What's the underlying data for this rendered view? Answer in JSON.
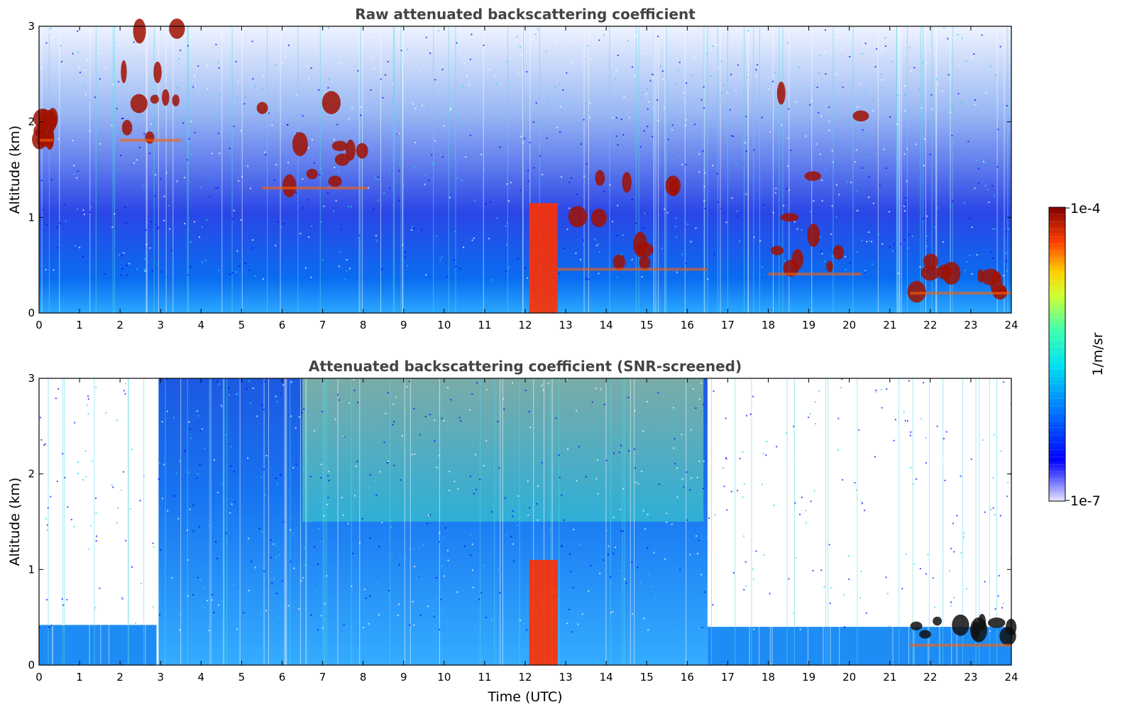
{
  "chart_data": [
    {
      "type": "heatmap",
      "title": "Raw attenuated backscattering coefficient",
      "xlabel": "",
      "ylabel": "Altitude (km)",
      "xlim": [
        0,
        24
      ],
      "ylim": [
        0,
        3
      ],
      "x_ticks": [
        "0",
        "1",
        "2",
        "3",
        "4",
        "5",
        "6",
        "7",
        "8",
        "9",
        "10",
        "11",
        "12",
        "13",
        "14",
        "15",
        "16",
        "17",
        "18",
        "19",
        "20",
        "21",
        "22",
        "23",
        "24"
      ],
      "y_ticks": [
        "0",
        "1",
        "2",
        "3"
      ],
      "features": [
        {
          "kind": "cloud_layer",
          "x": [
            0.0,
            0.35
          ],
          "y": [
            1.8,
            2.05
          ]
        },
        {
          "kind": "cloud_layer",
          "x": [
            2.0,
            3.5
          ],
          "y": [
            1.8,
            3.0
          ]
        },
        {
          "kind": "cloud_layer",
          "x": [
            5.5,
            8.1
          ],
          "y": [
            1.3,
            2.3
          ]
        },
        {
          "kind": "dense_layer",
          "x": [
            12.1,
            12.8
          ],
          "y": [
            0.0,
            1.15
          ]
        },
        {
          "kind": "cloud_layer",
          "x": [
            12.8,
            16.5
          ],
          "y": [
            0.45,
            1.5
          ]
        },
        {
          "kind": "cloud_layer",
          "x": [
            18.0,
            20.3
          ],
          "y": [
            0.4,
            2.6
          ]
        },
        {
          "kind": "cloud_layer",
          "x": [
            21.5,
            24.0
          ],
          "y": [
            0.2,
            0.55
          ]
        }
      ]
    },
    {
      "type": "heatmap",
      "title": "Attenuated backscattering coefficient (SNR-screened)",
      "xlabel": "Time (UTC)",
      "ylabel": "Altitude (km)",
      "xlim": [
        0,
        24
      ],
      "ylim": [
        0,
        3
      ],
      "x_ticks": [
        "0",
        "1",
        "2",
        "3",
        "4",
        "5",
        "6",
        "7",
        "8",
        "9",
        "10",
        "11",
        "12",
        "13",
        "14",
        "15",
        "16",
        "17",
        "18",
        "19",
        "20",
        "21",
        "22",
        "23",
        "24"
      ],
      "y_ticks": [
        "0",
        "1",
        "2",
        "3"
      ],
      "features": [
        {
          "kind": "boundary_layer",
          "x": [
            0.0,
            2.9
          ],
          "y": [
            0.0,
            0.42
          ]
        },
        {
          "kind": "boundary_layer",
          "x": [
            16.5,
            24.0
          ],
          "y": [
            0.0,
            0.4
          ]
        },
        {
          "kind": "dense_layer",
          "x": [
            12.1,
            12.8
          ],
          "y": [
            0.0,
            1.1
          ]
        },
        {
          "kind": "cloud_layer",
          "x": [
            21.5,
            24.0
          ],
          "y": [
            0.2,
            0.55
          ]
        }
      ]
    }
  ],
  "colorbar": {
    "max_label": "1e-4",
    "min_label": "1e-7",
    "unit_label": "1/m/sr",
    "colormap": "jet"
  }
}
